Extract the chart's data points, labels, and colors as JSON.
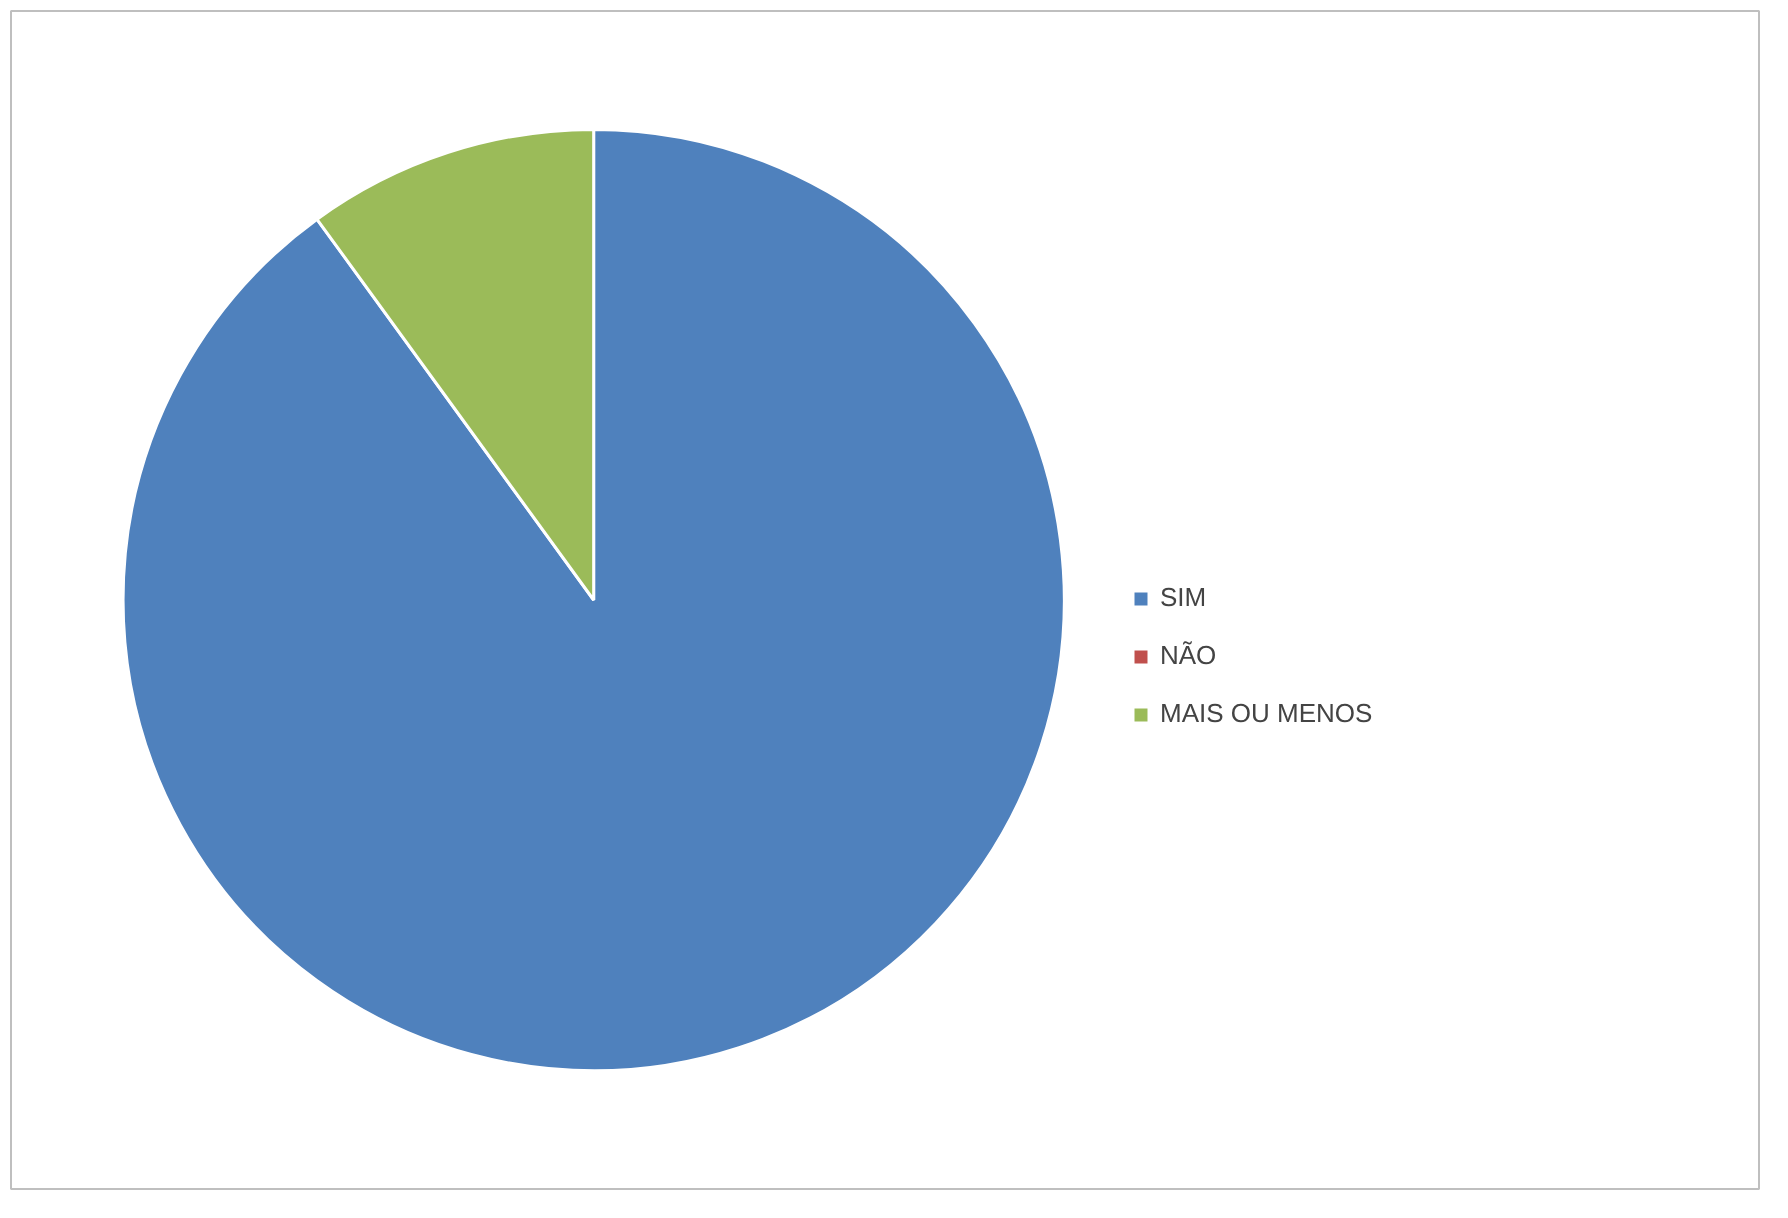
{
  "chart_data": {
    "type": "pie",
    "categories": [
      "SIM",
      "NÃO",
      "MAIS OU MENOS"
    ],
    "values": [
      90,
      0,
      10
    ],
    "colors": [
      "#4f81bd",
      "#c0504d",
      "#9bbb59"
    ],
    "legend": "right"
  }
}
